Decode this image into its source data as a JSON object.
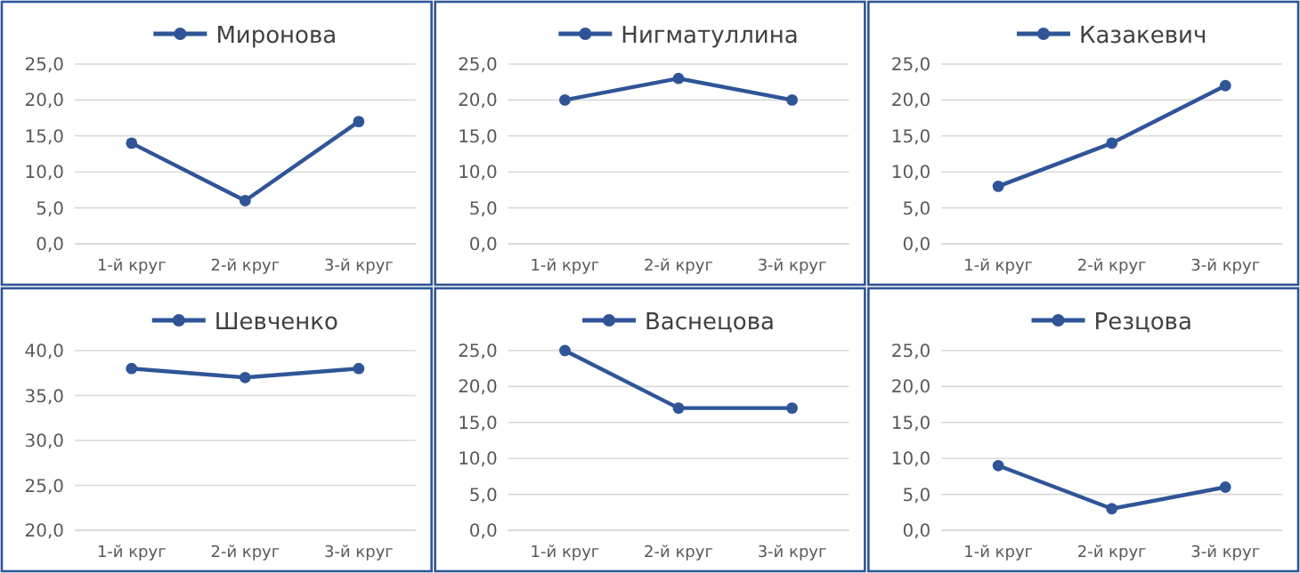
{
  "chart_data": [
    {
      "type": "line",
      "categories": [
        "1-й круг",
        "2-й круг",
        "3-й круг"
      ],
      "series": [
        {
          "name": "Миронова",
          "color": "#2f5597",
          "values": [
            14,
            6,
            17
          ]
        }
      ],
      "ylim": [
        0,
        25
      ],
      "yticks": [
        {
          "value": 0,
          "label": "0,0"
        },
        {
          "value": 5,
          "label": "5,0"
        },
        {
          "value": 10,
          "label": "10,0"
        },
        {
          "value": 15,
          "label": "15,0"
        },
        {
          "value": 20,
          "label": "20,0"
        },
        {
          "value": 25,
          "label": "25,0"
        }
      ],
      "grid": "y",
      "legend": "top",
      "marker": "circle"
    },
    {
      "type": "line",
      "categories": [
        "1-й круг",
        "2-й круг",
        "3-й круг"
      ],
      "series": [
        {
          "name": "Нигматуллина",
          "color": "#2f5597",
          "values": [
            20,
            23,
            20
          ]
        }
      ],
      "ylim": [
        0,
        25
      ],
      "yticks": [
        {
          "value": 0,
          "label": "0,0"
        },
        {
          "value": 5,
          "label": "5,0"
        },
        {
          "value": 10,
          "label": "10,0"
        },
        {
          "value": 15,
          "label": "15,0"
        },
        {
          "value": 20,
          "label": "20,0"
        },
        {
          "value": 25,
          "label": "25,0"
        }
      ],
      "grid": "y",
      "legend": "top",
      "marker": "circle"
    },
    {
      "type": "line",
      "categories": [
        "1-й круг",
        "2-й круг",
        "3-й круг"
      ],
      "series": [
        {
          "name": "Казакевич",
          "color": "#2f5597",
          "values": [
            8,
            14,
            22
          ]
        }
      ],
      "ylim": [
        0,
        25
      ],
      "yticks": [
        {
          "value": 0,
          "label": "0,0"
        },
        {
          "value": 5,
          "label": "5,0"
        },
        {
          "value": 10,
          "label": "10,0"
        },
        {
          "value": 15,
          "label": "15,0"
        },
        {
          "value": 20,
          "label": "20,0"
        },
        {
          "value": 25,
          "label": "25,0"
        }
      ],
      "grid": "y",
      "legend": "top",
      "marker": "circle"
    },
    {
      "type": "line",
      "categories": [
        "1-й круг",
        "2-й круг",
        "3-й круг"
      ],
      "series": [
        {
          "name": "Шевченко",
          "color": "#2f5597",
          "values": [
            38,
            37,
            38
          ]
        }
      ],
      "ylim": [
        20,
        40
      ],
      "yticks": [
        {
          "value": 20,
          "label": "20,0"
        },
        {
          "value": 25,
          "label": "25,0"
        },
        {
          "value": 30,
          "label": "30,0"
        },
        {
          "value": 35,
          "label": "35,0"
        },
        {
          "value": 40,
          "label": "40,0"
        }
      ],
      "grid": "y",
      "legend": "top",
      "marker": "circle"
    },
    {
      "type": "line",
      "categories": [
        "1-й круг",
        "2-й круг",
        "3-й круг"
      ],
      "series": [
        {
          "name": "Васнецова",
          "color": "#2f5597",
          "values": [
            25,
            17,
            17
          ]
        }
      ],
      "ylim": [
        0,
        25
      ],
      "yticks": [
        {
          "value": 0,
          "label": "0,0"
        },
        {
          "value": 5,
          "label": "5,0"
        },
        {
          "value": 10,
          "label": "10,0"
        },
        {
          "value": 15,
          "label": "15,0"
        },
        {
          "value": 20,
          "label": "20,0"
        },
        {
          "value": 25,
          "label": "25,0"
        }
      ],
      "grid": "y",
      "legend": "top",
      "marker": "circle"
    },
    {
      "type": "line",
      "categories": [
        "1-й круг",
        "2-й круг",
        "3-й круг"
      ],
      "series": [
        {
          "name": "Резцова",
          "color": "#2f5597",
          "values": [
            9,
            3,
            6
          ]
        }
      ],
      "ylim": [
        0,
        25
      ],
      "yticks": [
        {
          "value": 0,
          "label": "0,0"
        },
        {
          "value": 5,
          "label": "5,0"
        },
        {
          "value": 10,
          "label": "10,0"
        },
        {
          "value": 15,
          "label": "15,0"
        },
        {
          "value": 20,
          "label": "20,0"
        },
        {
          "value": 25,
          "label": "25,0"
        }
      ],
      "grid": "y",
      "legend": "top",
      "marker": "circle"
    }
  ]
}
